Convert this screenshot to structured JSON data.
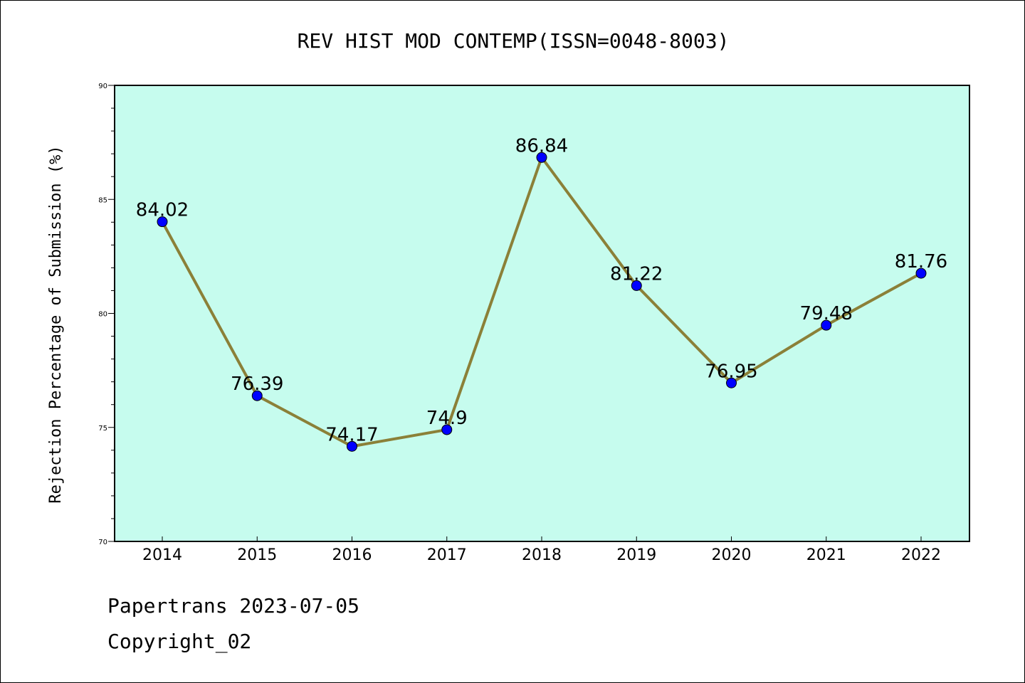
{
  "chart_data": {
    "type": "line",
    "title": "REV HIST MOD CONTEMP(ISSN=0048-8003)",
    "ylabel": "Rejection Percentage of Submission (%)",
    "xlabel": "",
    "categories": [
      "2014",
      "2015",
      "2016",
      "2017",
      "2018",
      "2019",
      "2020",
      "2021",
      "2022"
    ],
    "values": [
      84.02,
      76.39,
      74.17,
      74.9,
      86.84,
      81.22,
      76.95,
      79.48,
      81.76
    ],
    "data_labels": [
      "84.02",
      "76.39",
      "74.17",
      "74.9",
      "86.84",
      "81.22",
      "76.95",
      "79.48",
      "81.76"
    ],
    "ylim": [
      70,
      90
    ],
    "yticks": [
      70,
      75,
      80,
      85,
      90
    ],
    "ytick_labels": [
      "70",
      "75",
      "80",
      "85",
      "90"
    ],
    "grid": false,
    "legend": "none",
    "colors": {
      "plot_background": "#c6fcee",
      "line": "#8b8038",
      "marker": "#0000ff"
    }
  },
  "footer": {
    "line1": "Papertrans 2023-07-05",
    "line2": "Copyright_02"
  }
}
